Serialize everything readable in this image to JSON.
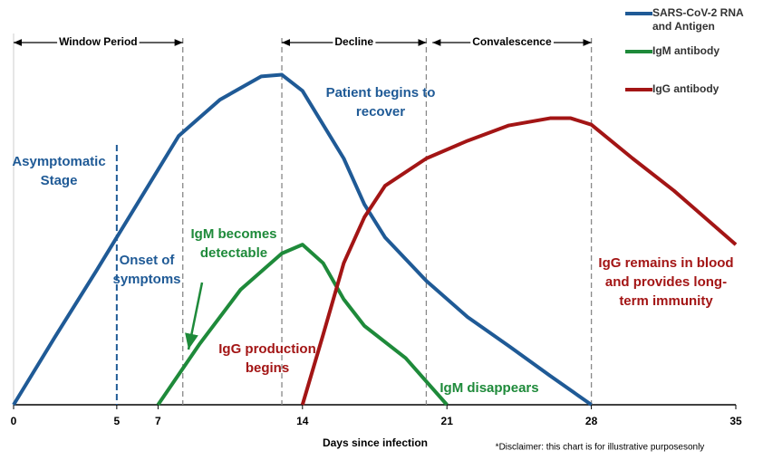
{
  "chart_data": {
    "type": "line",
    "xlabel": "Days since infection",
    "note": "*Disclaimer: this chart is for illustrative purposesonly",
    "xlim": [
      0,
      35
    ],
    "xticks": [
      0,
      5,
      7,
      14,
      21,
      28,
      35
    ],
    "ylim": [
      0,
      4.5
    ],
    "series": [
      {
        "name": "SARS-CoV-2 RNA and Antigen",
        "color": "#1f5a96",
        "x": [
          0,
          2,
          4,
          6,
          8,
          10,
          12,
          13,
          14,
          16,
          17,
          18,
          20,
          22,
          24,
          26,
          28
        ],
        "values": [
          0,
          0.84,
          1.66,
          2.5,
          3.34,
          3.79,
          4.08,
          4.1,
          3.9,
          3.06,
          2.49,
          2.08,
          1.54,
          1.09,
          0.73,
          0.36,
          0
        ]
      },
      {
        "name": "IgM antibody",
        "color": "#1e8a3a",
        "x": [
          7,
          9,
          11,
          13,
          14,
          15,
          16,
          17,
          19,
          21
        ],
        "values": [
          0,
          0.75,
          1.43,
          1.88,
          1.99,
          1.76,
          1.31,
          0.98,
          0.58,
          0
        ]
      },
      {
        "name": "IgG antibody",
        "color": "#a31515",
        "x": [
          14,
          15,
          16,
          17,
          18,
          20,
          22,
          24,
          26,
          27,
          28,
          30,
          32,
          35
        ],
        "values": [
          0,
          0.87,
          1.76,
          2.33,
          2.72,
          3.06,
          3.28,
          3.47,
          3.56,
          3.56,
          3.48,
          3.06,
          2.66,
          1.99
        ]
      }
    ],
    "phases": [
      {
        "label": "Window Period",
        "from": 0,
        "to": 8.2
      },
      {
        "label": "Decline",
        "from": 13,
        "to": 20
      },
      {
        "label": "Convalescence",
        "from": 20.3,
        "to": 28
      }
    ],
    "vlines": [
      5,
      8.2,
      13,
      20,
      28
    ],
    "annotations": [
      {
        "text": "Patient begins to recover",
        "color": "#1f5a96"
      },
      {
        "text": "Asymptomatic Stage",
        "color": "#1f5a96"
      },
      {
        "text": "Onset of symptoms",
        "color": "#1f5a96"
      },
      {
        "text": "IgM becomes detectable",
        "color": "#1e8a3a"
      },
      {
        "text": "IgG production begins",
        "color": "#a31515"
      },
      {
        "text": "IgM disappears",
        "color": "#1e8a3a"
      },
      {
        "text": "IgG remains in blood and provides long-term immunity",
        "color": "#a31515"
      }
    ]
  }
}
